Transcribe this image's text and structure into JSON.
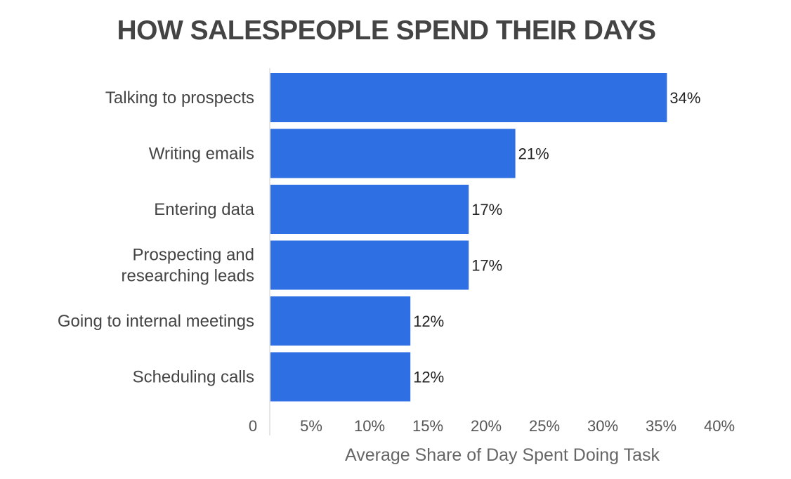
{
  "chart_data": {
    "type": "bar",
    "orientation": "horizontal",
    "title": "HOW SALESPEOPLE SPEND THEIR DAYS",
    "xlabel": "Average Share of Day Spent Doing Task",
    "ylabel": "",
    "categories": [
      "Talking to prospects",
      "Writing emails",
      "Entering data",
      "Prospecting and researching leads",
      "Going to internal meetings",
      "Scheduling calls"
    ],
    "category_lines": [
      [
        "Talking to prospects"
      ],
      [
        "Writing emails"
      ],
      [
        "Entering data"
      ],
      [
        "Prospecting and",
        "researching leads"
      ],
      [
        "Going to internal meetings"
      ],
      [
        "Scheduling calls"
      ]
    ],
    "values": [
      34,
      21,
      17,
      17,
      12,
      12
    ],
    "value_labels": [
      "34%",
      "21%",
      "17%",
      "17%",
      "12%",
      "12%"
    ],
    "xlim": [
      0,
      40
    ],
    "xticks": [
      0,
      5,
      10,
      15,
      20,
      25,
      30,
      35,
      40
    ],
    "xtick_labels": [
      "0",
      "5%",
      "10%",
      "15%",
      "20%",
      "25%",
      "30%",
      "35%",
      "40%"
    ],
    "grid": false,
    "legend": "none",
    "bar_color": "#2f6fe4"
  }
}
